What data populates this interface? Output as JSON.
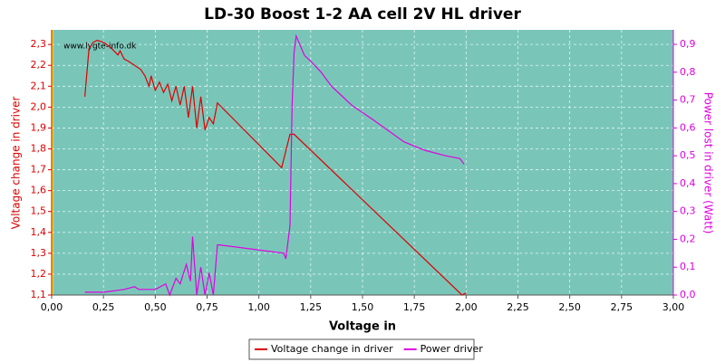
{
  "chart_data": {
    "type": "line",
    "title": "LD-30 Boost 1-2 AA cell 2V HL driver",
    "xlabel": "Voltage in",
    "ylabel": "Voltage change in driver",
    "y2label": "Power lost in driver (Watt)",
    "watermark": "www.lygte-info.dk",
    "grid": true,
    "legend": "bottom",
    "xlim": [
      0,
      3
    ],
    "ylim": [
      1.1,
      2.37
    ],
    "y2lim": [
      0,
      0.952
    ],
    "xticks": [
      {
        "value": 0,
        "label": "0,00"
      },
      {
        "value": 0.25,
        "label": "0,25"
      },
      {
        "value": 0.5,
        "label": "0,50"
      },
      {
        "value": 0.75,
        "label": "0,75"
      },
      {
        "value": 1,
        "label": "1,00"
      },
      {
        "value": 1.25,
        "label": "1,25"
      },
      {
        "value": 1.5,
        "label": "1,50"
      },
      {
        "value": 1.75,
        "label": "1,75"
      },
      {
        "value": 2,
        "label": "2,00"
      },
      {
        "value": 2.25,
        "label": "2,25"
      },
      {
        "value": 2.5,
        "label": "2,50"
      },
      {
        "value": 2.75,
        "label": "2,75"
      },
      {
        "value": 3,
        "label": "3,00"
      }
    ],
    "yticks": [
      {
        "value": 1.1,
        "label": "1,1"
      },
      {
        "value": 1.2,
        "label": "1,2"
      },
      {
        "value": 1.3,
        "label": "1,3"
      },
      {
        "value": 1.4,
        "label": "1,4"
      },
      {
        "value": 1.5,
        "label": "1,5"
      },
      {
        "value": 1.6,
        "label": "1,6"
      },
      {
        "value": 1.7,
        "label": "1,7"
      },
      {
        "value": 1.8,
        "label": "1,8"
      },
      {
        "value": 1.9,
        "label": "1,9"
      },
      {
        "value": 2.0,
        "label": "2,0"
      },
      {
        "value": 2.1,
        "label": "2,1"
      },
      {
        "value": 2.2,
        "label": "2,2"
      },
      {
        "value": 2.3,
        "label": "2,3"
      }
    ],
    "y2ticks": [
      {
        "value": 0,
        "label": "0,0"
      },
      {
        "value": 0.1,
        "label": "0,1"
      },
      {
        "value": 0.2,
        "label": "0,2"
      },
      {
        "value": 0.3,
        "label": "0,3"
      },
      {
        "value": 0.4,
        "label": "0,4"
      },
      {
        "value": 0.5,
        "label": "0,5"
      },
      {
        "value": 0.6,
        "label": "0,6"
      },
      {
        "value": 0.7,
        "label": "0,7"
      },
      {
        "value": 0.8,
        "label": "0,8"
      },
      {
        "value": 0.9,
        "label": "0,9"
      }
    ],
    "series": [
      {
        "name": "Voltage change in driver",
        "color": "#dd0000",
        "axis": "y",
        "x": [
          0.16,
          0.18,
          0.2,
          0.22,
          0.25,
          0.28,
          0.3,
          0.32,
          0.33,
          0.35,
          0.37,
          0.4,
          0.43,
          0.45,
          0.47,
          0.48,
          0.5,
          0.52,
          0.54,
          0.56,
          0.58,
          0.6,
          0.62,
          0.64,
          0.66,
          0.68,
          0.7,
          0.72,
          0.74,
          0.76,
          0.78,
          0.8,
          1.11,
          1.15,
          1.17,
          1.98,
          2.0
        ],
        "values": [
          2.05,
          2.28,
          2.31,
          2.32,
          2.31,
          2.29,
          2.27,
          2.25,
          2.27,
          2.23,
          2.22,
          2.2,
          2.18,
          2.15,
          2.1,
          2.15,
          2.08,
          2.12,
          2.07,
          2.11,
          2.03,
          2.1,
          2.01,
          2.1,
          1.95,
          2.1,
          1.9,
          2.05,
          1.89,
          1.95,
          1.92,
          2.02,
          1.71,
          1.87,
          1.87,
          1.1,
          1.11
        ]
      },
      {
        "name": "Power driver",
        "color": "#e000e0",
        "axis": "y2",
        "x": [
          0.16,
          0.25,
          0.3,
          0.35,
          0.4,
          0.42,
          0.5,
          0.55,
          0.57,
          0.6,
          0.62,
          0.65,
          0.67,
          0.68,
          0.7,
          0.72,
          0.74,
          0.76,
          0.78,
          0.8,
          0.81,
          1.12,
          1.13,
          1.15,
          1.16,
          1.17,
          1.18,
          1.22,
          1.25,
          1.3,
          1.35,
          1.45,
          1.55,
          1.7,
          1.8,
          1.9,
          1.97,
          1.99
        ],
        "values": [
          0.01,
          0.01,
          0.015,
          0.02,
          0.03,
          0.02,
          0.02,
          0.04,
          0.0,
          0.06,
          0.04,
          0.11,
          0.05,
          0.21,
          0.0,
          0.1,
          0.0,
          0.08,
          0.0,
          0.18,
          0.18,
          0.15,
          0.13,
          0.25,
          0.68,
          0.87,
          0.93,
          0.86,
          0.84,
          0.8,
          0.75,
          0.68,
          0.63,
          0.55,
          0.52,
          0.5,
          0.49,
          0.47
        ]
      }
    ]
  }
}
